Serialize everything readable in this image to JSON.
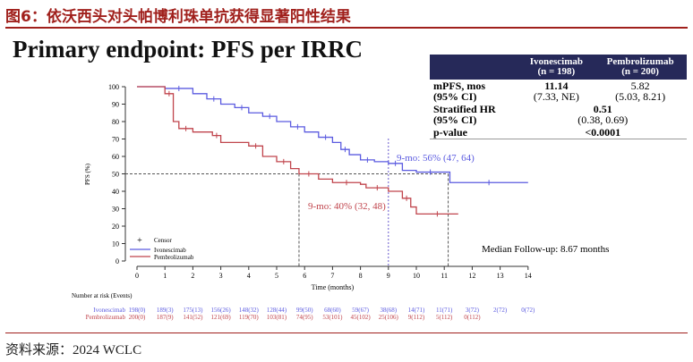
{
  "figure_title": "图6：依沃西头对头帕博利珠单抗获得显著阳性结果",
  "source": "资料来源：2024 WCLC",
  "headline": "Primary endpoint: PFS per IRRC",
  "table": {
    "headers": [
      "Ivonescimab\n(n = 198)",
      "Pembrolizumab\n(n = 200)"
    ],
    "h1a": "Ivonescimab",
    "h1b": "(n = 198)",
    "h2a": "Pembrolizumab",
    "h2b": "(n = 200)",
    "mpfs_label": "mPFS, mos",
    "mpfs_ci_label": "(95% CI)",
    "ivo_mpfs": "11.14",
    "ivo_ci": "(7.33, NE)",
    "pem_mpfs": "5.82",
    "pem_ci": "(5.03, 8.21)",
    "hr_label": "Stratified HR",
    "hr_ci_label": "(95% CI)",
    "hr": "0.51",
    "hr_ci": "(0.38, 0.69)",
    "p_label": "p-value",
    "p": "<0.0001"
  },
  "chart_data": {
    "type": "line",
    "xlabel": "Time (months)",
    "ylabel": "PFS (%)",
    "xlim": [
      0,
      14
    ],
    "ylim": [
      0,
      100
    ],
    "xticks": [
      0,
      1,
      2,
      3,
      4,
      5,
      6,
      7,
      8,
      9,
      10,
      11,
      12,
      13,
      14
    ],
    "yticks": [
      0,
      10,
      20,
      30,
      40,
      50,
      60,
      70,
      80,
      90,
      100
    ],
    "legend": {
      "placement": "bottom-left",
      "censor": "Censor"
    },
    "series": [
      {
        "name": "Ivonescimab",
        "color": "#5b5be0",
        "step": true,
        "x": [
          0,
          1,
          2,
          2.5,
          3,
          3.5,
          4,
          4.5,
          5,
          5.5,
          6,
          6.5,
          7,
          7.3,
          7.6,
          8,
          8.5,
          9,
          9.5,
          10,
          11,
          11.2,
          14
        ],
        "y": [
          100,
          99,
          96,
          93,
          90,
          88,
          85,
          83,
          80,
          77,
          74,
          71,
          68,
          64,
          61,
          58,
          57,
          56,
          52,
          51,
          51,
          45,
          45
        ]
      },
      {
        "name": "Pembrolizumab",
        "color": "#c0444c",
        "step": true,
        "x": [
          0,
          1,
          1.3,
          1.5,
          2,
          2.7,
          3,
          4,
          4.5,
          5,
          5.5,
          5.8,
          6.5,
          7,
          8,
          8.2,
          9,
          9.5,
          9.8,
          10,
          11.5
        ],
        "y": [
          100,
          96,
          80,
          76,
          74,
          72,
          68,
          66,
          60,
          57,
          53,
          50,
          47,
          45,
          44,
          42,
          40,
          36,
          31,
          27,
          27
        ]
      }
    ],
    "annotations": [
      "9-mo: 56% (47, 64)",
      "9-mo: 40% (32, 48)",
      "Median Follow-up: 8.67 months"
    ],
    "reference_lines": {
      "y": 50,
      "x": [
        5.8,
        9,
        11.14
      ]
    },
    "risk_table": {
      "title": "Number at risk (Events)",
      "rows": [
        {
          "name": "Ivonescimab",
          "values": [
            "198(0)",
            "189(3)",
            "175(13)",
            "156(26)",
            "148(32)",
            "128(44)",
            "99(50)",
            "68(60)",
            "59(67)",
            "38(68)",
            "14(71)",
            "11(71)",
            "3(72)",
            "2(72)",
            "0(72)"
          ]
        },
        {
          "name": "Pembrolizumab",
          "values": [
            "200(0)",
            "187(9)",
            "141(52)",
            "121(69)",
            "119(70)",
            "103(81)",
            "74(95)",
            "53(101)",
            "45(102)",
            "25(106)",
            "9(112)",
            "5(112)",
            "0(112)"
          ]
        }
      ]
    }
  }
}
